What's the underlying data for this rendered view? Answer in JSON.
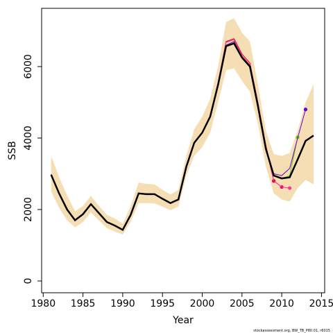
{
  "chart_data": {
    "type": "line",
    "xlabel": "Year",
    "ylabel": "SSB",
    "footnote": "stockassessment.org, BW_TB_P80.01, r6015",
    "xlim": [
      1979.8,
      2015.4
    ],
    "ylim": [
      -330,
      7630
    ],
    "xticks": [
      1980,
      1985,
      1990,
      1995,
      2000,
      2005,
      2010,
      2015
    ],
    "yticks": [
      0,
      2000,
      4000,
      6000
    ],
    "x": [
      1981,
      1982,
      1983,
      1984,
      1985,
      1986,
      1987,
      1988,
      1989,
      1990,
      1991,
      1992,
      1993,
      1994,
      1995,
      1996,
      1997,
      1998,
      1999,
      2000,
      2001,
      2002,
      2003,
      2004,
      2005,
      2006,
      2007,
      2008,
      2009,
      2010,
      2011,
      2012,
      2013,
      2014
    ],
    "band": {
      "color": "#f5deb3",
      "upper": [
        3500,
        2900,
        2400,
        1950,
        2100,
        2380,
        2100,
        1850,
        1750,
        1600,
        2100,
        2750,
        2720,
        2700,
        2550,
        2420,
        2550,
        3500,
        4250,
        4600,
        5100,
        6000,
        7250,
        7350,
        6950,
        6700,
        5500,
        4200,
        3550,
        3500,
        3580,
        4200,
        5000,
        5500
      ],
      "lower": [
        2500,
        2050,
        1700,
        1500,
        1650,
        1920,
        1700,
        1480,
        1380,
        1300,
        1650,
        2180,
        2180,
        2170,
        2080,
        1980,
        2080,
        2950,
        3500,
        3750,
        4150,
        5000,
        5900,
        5950,
        5600,
        5300,
        4400,
        3200,
        2450,
        2280,
        2220,
        2600,
        2830,
        2700
      ]
    },
    "series": [
      {
        "color": "#cc0033",
        "values": [
          2990,
          2470,
          2010,
          1710,
          1880,
          2160,
          1910,
          1660,
          1560,
          1440,
          1860,
          2460,
          2440,
          2440,
          2310,
          2190,
          2290,
          3210,
          3880,
          4160,
          4620,
          5550,
          6700,
          6780,
          6350,
          6100,
          5000,
          3800,
          2800,
          null,
          null,
          null,
          null,
          null
        ]
      },
      {
        "color": "#e6005c",
        "values": [
          2980,
          2460,
          2005,
          1705,
          1875,
          2155,
          1905,
          1655,
          1555,
          1435,
          1855,
          2455,
          2435,
          2435,
          2305,
          2185,
          2285,
          3205,
          3875,
          4155,
          4610,
          5530,
          6680,
          6750,
          6300,
          6050,
          4950,
          3750,
          2800,
          2630,
          null,
          null,
          null,
          null
        ]
      },
      {
        "color": "#ff3399",
        "values": [
          2980,
          2460,
          2005,
          1705,
          1875,
          2155,
          1905,
          1655,
          1555,
          1435,
          1855,
          2455,
          2435,
          2435,
          2305,
          2185,
          2285,
          3205,
          3875,
          4155,
          4610,
          5530,
          6680,
          6750,
          6300,
          6050,
          4950,
          3750,
          2800,
          2630,
          2600,
          null,
          null,
          null
        ]
      },
      {
        "color": "#66cc00",
        "values": [
          2970,
          2450,
          2000,
          1700,
          1870,
          2150,
          1900,
          1650,
          1550,
          1430,
          1850,
          2450,
          2430,
          2430,
          2300,
          2180,
          2280,
          3200,
          3870,
          4150,
          4600,
          5500,
          6600,
          6700,
          6250,
          6000,
          4900,
          3700,
          2950,
          2870,
          2950,
          4020,
          null,
          null
        ]
      },
      {
        "color": "#6600cc",
        "values": [
          2970,
          2450,
          2000,
          1700,
          1870,
          2150,
          1900,
          1650,
          1550,
          1430,
          1850,
          2450,
          2430,
          2430,
          2300,
          2180,
          2280,
          3200,
          3870,
          4150,
          4600,
          5500,
          6600,
          6700,
          6250,
          6000,
          4900,
          3700,
          3000,
          2950,
          3150,
          4000,
          4800,
          null
        ]
      },
      {
        "color": "#000000",
        "values": [
          2970,
          2450,
          2000,
          1700,
          1870,
          2150,
          1900,
          1650,
          1550,
          1430,
          1850,
          2450,
          2430,
          2430,
          2300,
          2180,
          2280,
          3200,
          3870,
          4150,
          4600,
          5500,
          6570,
          6650,
          6250,
          6000,
          4900,
          3700,
          2950,
          2870,
          2900,
          3400,
          3920,
          4070
        ]
      }
    ]
  }
}
